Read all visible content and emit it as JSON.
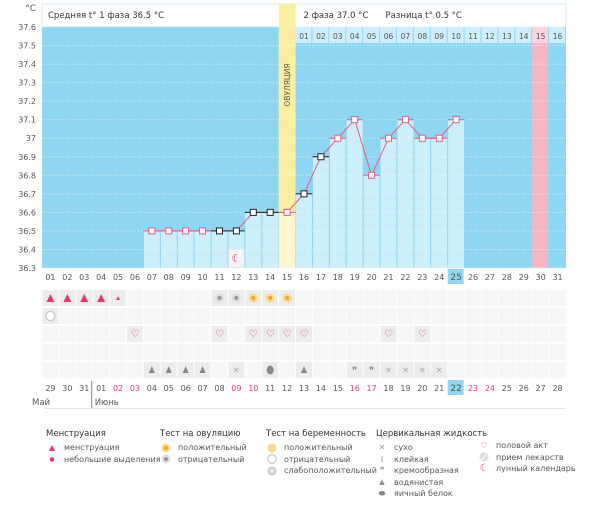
{
  "chart_data": {
    "type": "line",
    "title": "",
    "ylabel": "°C",
    "ylim": [
      36.3,
      37.6
    ],
    "yticks": [
      "37.6",
      "37.5",
      "37.4",
      "37.3",
      "37.2",
      "37.1",
      "37",
      "36.9",
      "36.8",
      "36.7",
      "36.6",
      "36.5",
      "36.4",
      "36.3"
    ],
    "grid": true,
    "phase1_avg_label": "Средняя t° 1 фаза",
    "phase1_avg_value": "36.5 °C",
    "phase2_label": "2 фаза",
    "phase2_value": "37.0 °C",
    "diff_label": "Разница t°",
    "diff_value": "0.5 °C",
    "ovulation_label": "ОВУЛЯЦИЯ",
    "ovulation_day": 15,
    "highlight_day_pink": 30,
    "current_day": 25,
    "phase2_day_numbers": [
      "01",
      "02",
      "03",
      "04",
      "05",
      "06",
      "07",
      "08",
      "09",
      "10",
      "11",
      "12",
      "13",
      "14",
      "15",
      "16"
    ],
    "phase2_start_day": 16,
    "cycle_days": [
      "01",
      "02",
      "03",
      "04",
      "05",
      "06",
      "07",
      "08",
      "09",
      "10",
      "11",
      "12",
      "13",
      "14",
      "15",
      "16",
      "17",
      "18",
      "19",
      "20",
      "21",
      "22",
      "23",
      "24",
      "25",
      "26",
      "27",
      "28",
      "29",
      "30",
      "31"
    ],
    "dates": [
      "29",
      "30",
      "31",
      "01",
      "02",
      "03",
      "04",
      "05",
      "06",
      "07",
      "08",
      "09",
      "10",
      "11",
      "12",
      "13",
      "14",
      "15",
      "16",
      "17",
      "18",
      "19",
      "20",
      "21",
      "22",
      "23",
      "24",
      "25",
      "26",
      "27",
      "28"
    ],
    "red_dates_index": [
      4,
      5,
      11,
      12,
      18,
      19,
      25,
      26
    ],
    "month_labels": [
      {
        "label": "Май",
        "start": 0
      },
      {
        "label": "Июнь",
        "start": 3
      }
    ],
    "temperatures": [
      null,
      null,
      null,
      null,
      null,
      null,
      36.5,
      36.5,
      36.5,
      36.5,
      36.5,
      36.5,
      36.6,
      36.6,
      36.6,
      36.7,
      36.9,
      37.0,
      37.1,
      36.8,
      37.0,
      37.1,
      37.0,
      37.0,
      37.1,
      null,
      null,
      null,
      null,
      null,
      null
    ],
    "marker_style": [
      "",
      "",
      "",
      "",
      "",
      "",
      "pink",
      "pink",
      "pink",
      "pink",
      "black",
      "black",
      "black",
      "black",
      "pink",
      "black",
      "black",
      "pink",
      "pink",
      "pink",
      "pink",
      "pink",
      "pink",
      "pink",
      "pink",
      "",
      "",
      "",
      "",
      "",
      ""
    ],
    "rows": {
      "menstruation": [
        "heavy",
        "heavy",
        "heavy",
        "heavy",
        "light",
        "",
        "",
        "",
        "",
        "",
        "",
        "",
        "",
        "",
        "",
        "",
        "",
        "",
        "",
        "",
        "",
        "",
        "",
        "",
        "",
        "",
        "",
        "",
        "",
        "",
        ""
      ],
      "ovulation_test": [
        "",
        "",
        "",
        "",
        "",
        "",
        "",
        "",
        "",
        "",
        "neg",
        "neg",
        "pos",
        "pos",
        "pos",
        "",
        "",
        "",
        "",
        "",
        "",
        "",
        "",
        "",
        "",
        "",
        "",
        "",
        "",
        "",
        ""
      ],
      "pregnancy_test": [
        "neg",
        "",
        "",
        "",
        "",
        "",
        "",
        "",
        "",
        "",
        "",
        "",
        "",
        "",
        "",
        "",
        "",
        "",
        "",
        "",
        "",
        "",
        "",
        "",
        "",
        "",
        "",
        "",
        "",
        "",
        ""
      ],
      "intercourse": [
        "",
        "",
        "",
        "",
        "",
        "yes",
        "",
        "",
        "",
        "",
        "yes",
        "",
        "yes",
        "yes",
        "yes",
        "yes",
        "",
        "",
        "",
        "",
        "yes",
        "",
        "yes",
        "",
        "",
        "",
        "",
        "",
        "",
        "",
        ""
      ],
      "moon": [
        "",
        "",
        "",
        "",
        "",
        "",
        "",
        "",
        "",
        "",
        "",
        "yes",
        "",
        "",
        "",
        "",
        "",
        "",
        "",
        "",
        "",
        "",
        "",
        "",
        "",
        "",
        "",
        "",
        "",
        "",
        ""
      ],
      "cervical": [
        "",
        "",
        "",
        "",
        "",
        "",
        "watery",
        "watery",
        "watery",
        "watery",
        "",
        "dry",
        "",
        "eggwhite",
        "",
        "watery",
        "",
        "",
        "creamy",
        "creamy",
        "dry",
        "dry",
        "dry",
        "dry",
        "",
        "",
        "",
        "",
        "",
        "",
        ""
      ]
    }
  },
  "legend": {
    "menstruation": {
      "title": "Менструация",
      "items": [
        "менструация",
        "небольшие выделения"
      ]
    },
    "ovulation_test": {
      "title": "Тест на овуляцию",
      "items": [
        "положительный",
        "отрицательный"
      ]
    },
    "pregnancy_test": {
      "title": "Тест на беременность",
      "items": [
        "положительный",
        "отрицательный",
        "слабоположительный"
      ]
    },
    "cervical": {
      "title": "Цервикальная жидкость",
      "items": [
        "сухо",
        "клейкая",
        "кремообразная",
        "водянистая",
        "яичный белок"
      ]
    },
    "other": {
      "items": [
        "половой акт",
        "прием лекарств",
        "лунный календарь"
      ]
    }
  },
  "colors": {
    "sky": "#8fd6f2",
    "bar": "#cdeefb",
    "ovulation": "#fbeea0",
    "ovulation_bar": "#fdf6cf",
    "pink_col": "#f7b6c6",
    "line": "#ea5a86",
    "red_text": "#e8376b",
    "current": "#8fd6f2"
  }
}
